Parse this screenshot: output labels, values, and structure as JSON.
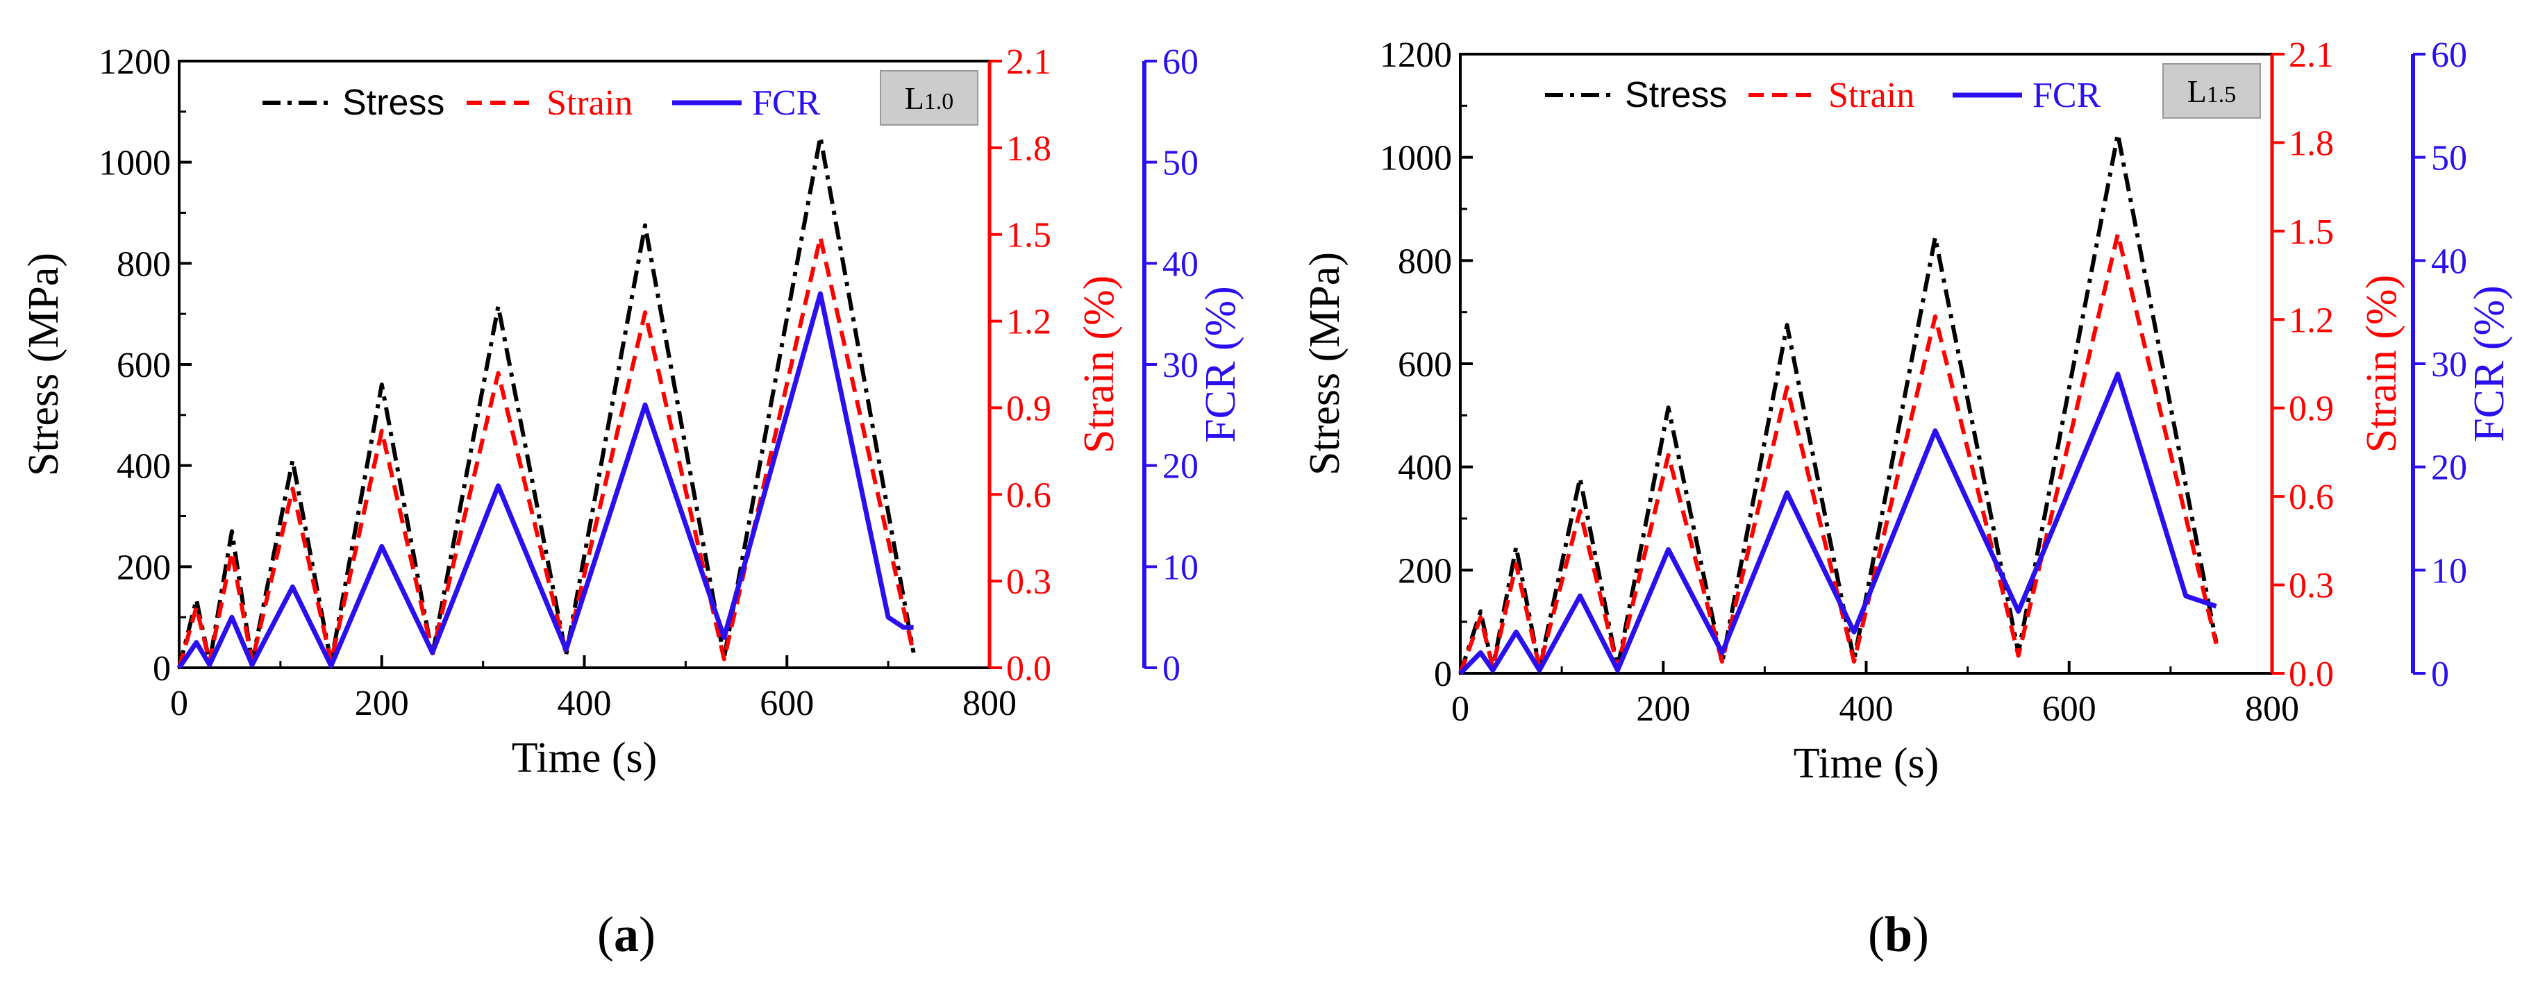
{
  "chart_data": [
    {
      "type": "line",
      "panel_label": "a",
      "tag": "L1.0",
      "xlabel": "Time (s)",
      "ylabel": "Stress (MPa)",
      "y2label": "Strain (%)",
      "y3label": "FCR (%)",
      "xlim": [
        0,
        800
      ],
      "ylim": [
        0,
        1200
      ],
      "y2lim": [
        0,
        2.1
      ],
      "y3lim": [
        0,
        60
      ],
      "xticks": [
        "0",
        "200",
        "400",
        "600",
        "800"
      ],
      "yticks": [
        "0",
        "200",
        "400",
        "600",
        "800",
        "1000",
        "1200"
      ],
      "y2ticks": [
        "0.0",
        "0.3",
        "0.6",
        "0.9",
        "1.2",
        "1.5",
        "1.8",
        "2.1"
      ],
      "y3ticks": [
        "0",
        "10",
        "20",
        "30",
        "40",
        "50",
        "60"
      ],
      "legend": "top",
      "grid": false,
      "colors": {
        "stress": "#000000",
        "strain": "#ff0000",
        "fcr": "#2a10f0",
        "axis2": "#ff0000",
        "axis3": "#2a10f0",
        "tag_bg": "#cccccc"
      },
      "series": [
        {
          "name": "Stress",
          "axis": "left",
          "style": "dash-dot",
          "points": [
            [
              0,
              0
            ],
            [
              17,
              135
            ],
            [
              30,
              10
            ],
            [
              52,
              270
            ],
            [
              72,
              10
            ],
            [
              112,
              410
            ],
            [
              150,
              10
            ],
            [
              200,
              560
            ],
            [
              250,
              25
            ],
            [
              315,
              715
            ],
            [
              382,
              25
            ],
            [
              460,
              875
            ],
            [
              538,
              20
            ],
            [
              633,
              1050
            ],
            [
              725,
              30
            ]
          ]
        },
        {
          "name": "Strain",
          "axis": "right",
          "style": "dashed",
          "points": [
            [
              0,
              0
            ],
            [
              17,
              0.21
            ],
            [
              30,
              0.02
            ],
            [
              52,
              0.4
            ],
            [
              72,
              0.02
            ],
            [
              112,
              0.62
            ],
            [
              150,
              0.02
            ],
            [
              200,
              0.82
            ],
            [
              250,
              0.05
            ],
            [
              315,
              1.02
            ],
            [
              382,
              0.05
            ],
            [
              460,
              1.23
            ],
            [
              538,
              0.03
            ],
            [
              633,
              1.49
            ],
            [
              725,
              0.05
            ]
          ]
        },
        {
          "name": "FCR",
          "axis": "far-right",
          "style": "solid",
          "points": [
            [
              0,
              0
            ],
            [
              17,
              2.5
            ],
            [
              30,
              0.3
            ],
            [
              52,
              5
            ],
            [
              72,
              0.3
            ],
            [
              112,
              8
            ],
            [
              150,
              0.2
            ],
            [
              200,
              12
            ],
            [
              250,
              1.5
            ],
            [
              315,
              18
            ],
            [
              382,
              1.8
            ],
            [
              460,
              26
            ],
            [
              538,
              3
            ],
            [
              633,
              37
            ],
            [
              700,
              5
            ],
            [
              715,
              4
            ],
            [
              725,
              4
            ]
          ]
        }
      ]
    },
    {
      "type": "line",
      "panel_label": "b",
      "tag": "L1.5",
      "xlabel": "Time (s)",
      "ylabel": "Stress (MPa)",
      "y2label": "Strain (%)",
      "y3label": "FCR (%)",
      "xlim": [
        0,
        800
      ],
      "ylim": [
        0,
        1200
      ],
      "y2lim": [
        0,
        2.1
      ],
      "y3lim": [
        0,
        60
      ],
      "xticks": [
        "0",
        "200",
        "400",
        "600",
        "800"
      ],
      "yticks": [
        "0",
        "200",
        "400",
        "600",
        "800",
        "1000",
        "1200"
      ],
      "y2ticks": [
        "0.0",
        "0.3",
        "0.6",
        "0.9",
        "1.2",
        "1.5",
        "1.8",
        "2.1"
      ],
      "y3ticks": [
        "0",
        "10",
        "20",
        "30",
        "40",
        "50",
        "60"
      ],
      "legend": "top",
      "grid": false,
      "colors": {
        "stress": "#000000",
        "strain": "#ff0000",
        "fcr": "#2a10f0",
        "axis2": "#ff0000",
        "axis3": "#2a10f0",
        "tag_bg": "#cccccc"
      },
      "series": [
        {
          "name": "Stress",
          "axis": "left",
          "style": "dash-dot",
          "points": [
            [
              0,
              0
            ],
            [
              20,
              120
            ],
            [
              32,
              10
            ],
            [
              55,
              245
            ],
            [
              78,
              10
            ],
            [
              118,
              378
            ],
            [
              155,
              10
            ],
            [
              205,
              515
            ],
            [
              258,
              20
            ],
            [
              322,
              675
            ],
            [
              388,
              25
            ],
            [
              468,
              845
            ],
            [
              550,
              40
            ],
            [
              648,
              1045
            ],
            [
              745,
              60
            ]
          ]
        },
        {
          "name": "Strain",
          "axis": "right",
          "style": "dashed",
          "points": [
            [
              0,
              0
            ],
            [
              20,
              0.19
            ],
            [
              32,
              0.02
            ],
            [
              55,
              0.37
            ],
            [
              78,
              0.02
            ],
            [
              118,
              0.55
            ],
            [
              155,
              0.02
            ],
            [
              205,
              0.74
            ],
            [
              258,
              0.04
            ],
            [
              322,
              0.97
            ],
            [
              388,
              0.04
            ],
            [
              468,
              1.21
            ],
            [
              550,
              0.06
            ],
            [
              648,
              1.49
            ],
            [
              745,
              0.1
            ]
          ]
        },
        {
          "name": "FCR",
          "axis": "far-right",
          "style": "solid",
          "points": [
            [
              0,
              0
            ],
            [
              20,
              2
            ],
            [
              32,
              0.3
            ],
            [
              55,
              4
            ],
            [
              78,
              0.3
            ],
            [
              118,
              7.5
            ],
            [
              155,
              0.3
            ],
            [
              205,
              12
            ],
            [
              258,
              2
            ],
            [
              322,
              17.5
            ],
            [
              388,
              4
            ],
            [
              468,
              23.5
            ],
            [
              550,
              6
            ],
            [
              648,
              29
            ],
            [
              715,
              7.5
            ],
            [
              745,
              6.5
            ]
          ]
        }
      ]
    }
  ]
}
